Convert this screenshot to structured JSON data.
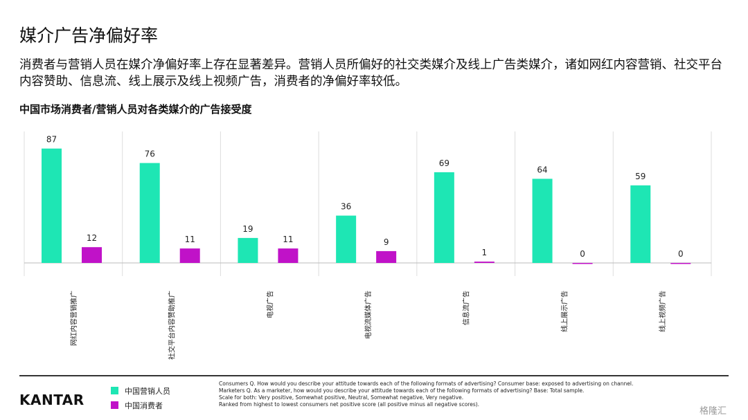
{
  "header": {
    "title": "媒介广告净偏好率",
    "subtitle": "消费者与营销人员在媒介净偏好率上存在显著差异。营销人员所偏好的社交类媒介及线上广告类媒介，诸如网红内容营销、社交平台内容赞助、信息流、线上展示及线上视频广告，消费者的净偏好率较低。"
  },
  "chart_data": {
    "type": "bar",
    "title": "中国市场消费者/营销人员对各类媒介的广告接受度",
    "categories": [
      "网红内容营销推广",
      "社交平台内容赞助推广",
      "电视广告",
      "电视流媒体广告",
      "信息流广告",
      "线上展示广告",
      "线上视频广告"
    ],
    "series": [
      {
        "name": "中国营销人员",
        "color": "#1ee6b4",
        "values": [
          87,
          76,
          19,
          36,
          69,
          64,
          59
        ]
      },
      {
        "name": "中国消费者",
        "color": "#c012c8",
        "values": [
          12,
          11,
          11,
          9,
          1,
          0,
          0
        ]
      }
    ],
    "ylim": [
      -10,
      100
    ]
  },
  "footer": {
    "logo": "KANTAR",
    "notes": [
      "Consumers Q. How would you describe your attitude towards each of the following formats of advertising? Consumer base: exposed to advertising on channel.",
      "Marketers Q. As a marketer, how would you describe your attitude towards each of the following formats of advertising? Base: Total sample.",
      "Scale for both: Very positive, Somewhat positive, Neutral, Somewhat negative, Very negative.",
      "Ranked from highest to lowest consumers net positive score (all positive minus all negative scores)."
    ],
    "watermark": "格隆汇"
  }
}
